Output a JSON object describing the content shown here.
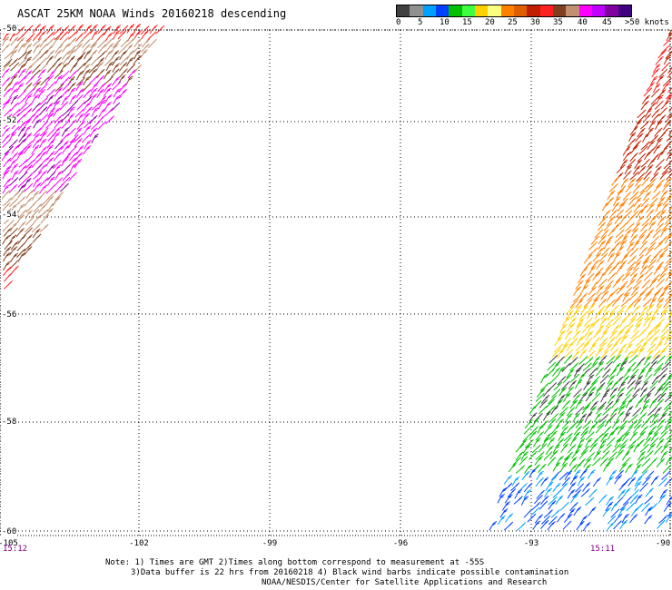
{
  "title": "ASCAT 25KM NOAA Winds 20160218 descending",
  "legend": {
    "labels": [
      "0",
      "5",
      "10",
      "15",
      "20",
      "25",
      "30",
      "35",
      "40",
      "45",
      ">50 knots"
    ],
    "colors": [
      "#404040",
      "#909090",
      "#00a0ff",
      "#0040ff",
      "#00c000",
      "#40ff40",
      "#ffd000",
      "#ffff80",
      "#ff8000",
      "#e06000",
      "#c02000",
      "#ff2020",
      "#804020",
      "#c09070",
      "#ff00ff",
      "#c000ff",
      "#8000a0",
      "#400080"
    ]
  },
  "axes": {
    "lat_labels": [
      "-50",
      "-52",
      "-54",
      "-56",
      "-58",
      "-60"
    ],
    "lon_labels": [
      "-105",
      "-102",
      "-99",
      "-96",
      "-93",
      "-90"
    ],
    "lat_range": [
      -60,
      -50
    ],
    "lon_range": [
      -105,
      -90
    ]
  },
  "times": {
    "left": "15:12",
    "right": "15:11"
  },
  "notes": {
    "line1": "Note: 1) Times are GMT 2)Times along bottom correspond to measurement at -55S",
    "line2": "3)Data buffer is 22 hrs from 20160218 4) Black wind barbs indicate possible contamination",
    "line3": "NOAA/NESDIS/Center for Satellite Applications and Research"
  },
  "wind_swaths": {
    "west": {
      "dominant_speeds_knots": "35-50+",
      "colors": [
        "#ff2020",
        "#c09070",
        "#804020",
        "#ff00ff",
        "#8000a0"
      ]
    },
    "east": {
      "dominant_speeds_knots": "10-40",
      "colors": [
        "#0040ff",
        "#00c000",
        "#ffd000",
        "#ff8000",
        "#c02000"
      ]
    }
  }
}
